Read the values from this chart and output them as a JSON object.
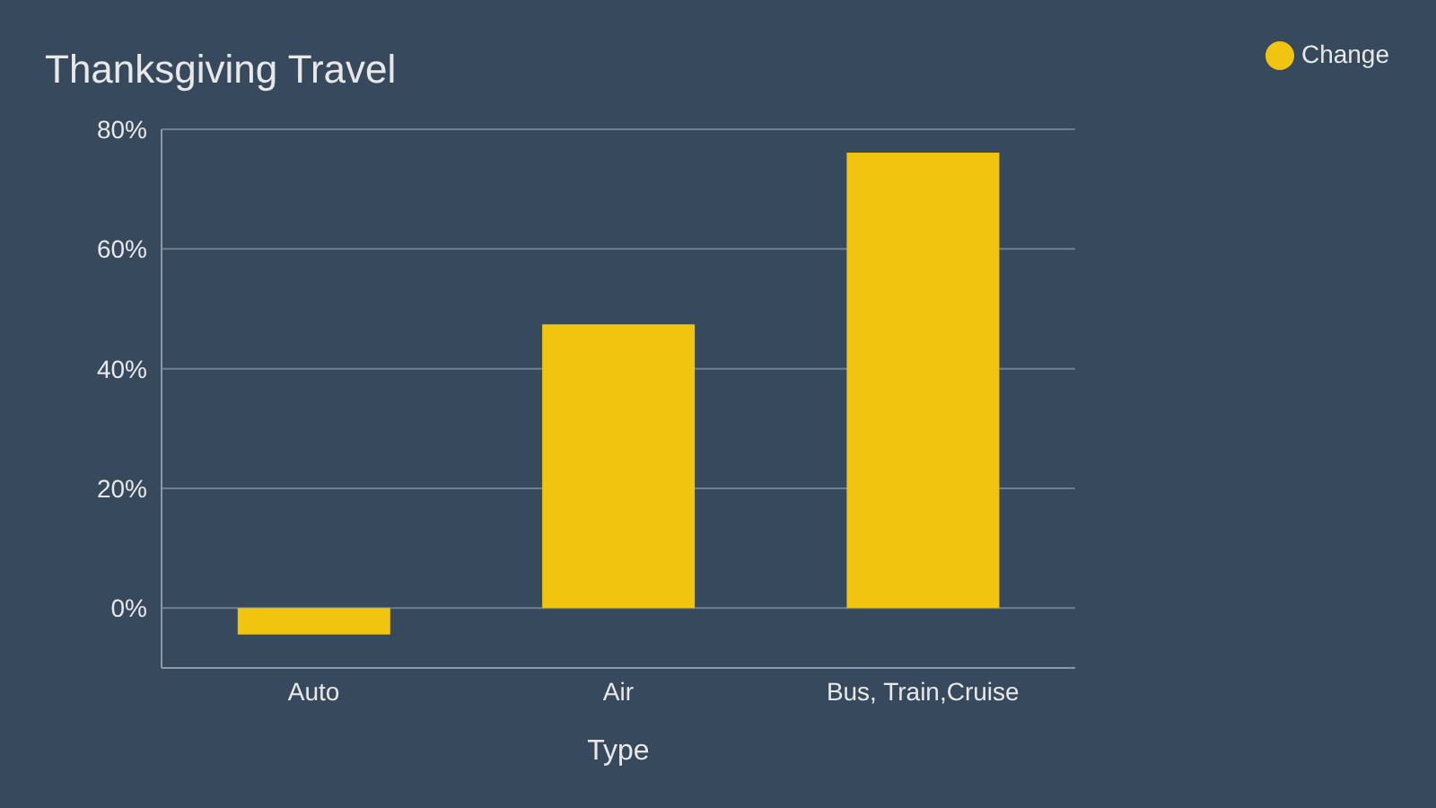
{
  "chart_data": {
    "type": "bar",
    "title": "Thanksgiving Travel",
    "xlabel": "Type",
    "categories": [
      "Auto",
      "Air",
      "Bus, Train,Cruise"
    ],
    "series": [
      {
        "name": "Change",
        "color": "#f1c40f",
        "values": [
          -4.4,
          47.4,
          76.1
        ]
      }
    ],
    "ylim": [
      -10,
      80
    ],
    "yticks": [
      {
        "value": 0,
        "label": "0%"
      },
      {
        "value": 20,
        "label": "20%"
      },
      {
        "value": 40,
        "label": "40%"
      },
      {
        "value": 60,
        "label": "60%"
      },
      {
        "value": 80,
        "label": "80%"
      }
    ],
    "grid": "y",
    "legend": "top right"
  }
}
